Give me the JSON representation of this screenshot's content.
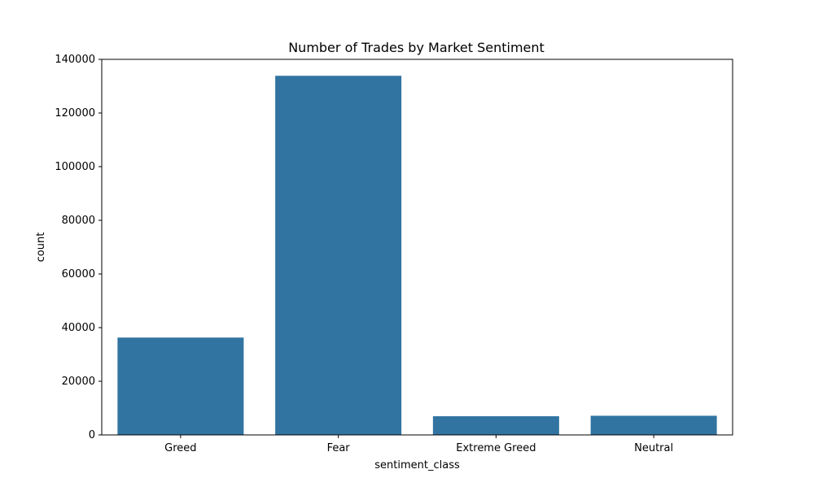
{
  "chart_data": {
    "type": "bar",
    "title": "Number of Trades by Market Sentiment",
    "xlabel": "sentiment_class",
    "ylabel": "count",
    "categories": [
      "Greed",
      "Fear",
      "Extreme Greed",
      "Neutral"
    ],
    "values": [
      36289,
      133871,
      6962,
      7141
    ],
    "ylim": [
      0,
      140000
    ],
    "yticks": [
      0,
      20000,
      40000,
      60000,
      80000,
      100000,
      120000,
      140000
    ],
    "ytick_labels": [
      "0",
      "20000",
      "40000",
      "60000",
      "80000",
      "100000",
      "120000",
      "140000"
    ],
    "bar_color": "#3274a1",
    "grid": false,
    "legend": "none"
  }
}
